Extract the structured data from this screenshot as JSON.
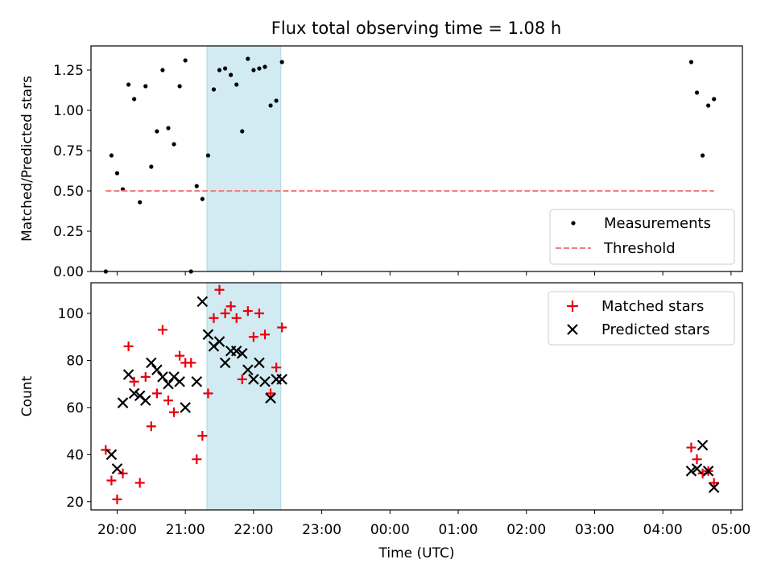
{
  "figure": {
    "title": "Flux total observing time = 1.08 h"
  },
  "colors": {
    "measurement": "#000000",
    "threshold": "#f08080",
    "matched": "#e8000b",
    "predicted": "#000000",
    "highlight": "#add8e6"
  },
  "chart_data": [
    {
      "type": "scatter",
      "ylabel": "Matched/Predicted stars",
      "xlim": [
        "19:37",
        "05:10"
      ],
      "ylim": [
        0,
        1.4
      ],
      "yticks": [
        "0.00",
        "0.25",
        "0.50",
        "0.75",
        "1.00",
        "1.25"
      ],
      "highlight_span": [
        "21:19",
        "22:24"
      ],
      "legend": {
        "placement": "lower-right",
        "entries": [
          "Measurements",
          "Threshold"
        ]
      },
      "series": [
        {
          "name": "Measurements",
          "marker": "dot",
          "x": [
            "19:50",
            "19:55",
            "20:00",
            "20:05",
            "20:10",
            "20:15",
            "20:20",
            "20:25",
            "20:30",
            "20:35",
            "20:40",
            "20:45",
            "20:50",
            "20:55",
            "21:00",
            "21:05",
            "21:10",
            "21:15",
            "21:20",
            "21:25",
            "21:30",
            "21:35",
            "21:40",
            "21:45",
            "21:50",
            "21:55",
            "22:00",
            "22:05",
            "22:10",
            "22:15",
            "22:20",
            "22:25",
            "04:25",
            "04:30",
            "04:35",
            "04:40",
            "04:45"
          ],
          "y": [
            0.0,
            0.72,
            0.61,
            0.51,
            1.16,
            1.07,
            0.43,
            1.15,
            0.65,
            0.87,
            1.25,
            0.89,
            0.79,
            1.15,
            1.31,
            0.0,
            0.53,
            0.45,
            0.72,
            1.13,
            1.25,
            1.26,
            1.22,
            1.16,
            0.87,
            1.32,
            1.25,
            1.26,
            1.27,
            1.03,
            1.06,
            1.3,
            1.3,
            1.11,
            0.72,
            1.03,
            1.07
          ]
        },
        {
          "name": "Threshold",
          "marker": "dashed-line",
          "x": [
            "19:50",
            "04:45"
          ],
          "y": [
            0.5,
            0.5
          ]
        }
      ]
    },
    {
      "type": "scatter",
      "xlabel": "Time (UTC)",
      "ylabel": "Count",
      "xlim": [
        "19:37",
        "05:10"
      ],
      "ylim": [
        16.5,
        113
      ],
      "yticks": [
        "20",
        "40",
        "60",
        "80",
        "100"
      ],
      "xticks": [
        "20:00",
        "21:00",
        "22:00",
        "23:00",
        "00:00",
        "01:00",
        "02:00",
        "03:00",
        "04:00",
        "05:00"
      ],
      "highlight_span": [
        "21:19",
        "22:24"
      ],
      "legend": {
        "placement": "upper-right",
        "entries": [
          "Matched stars",
          "Predicted stars"
        ]
      },
      "series": [
        {
          "name": "Matched stars",
          "marker": "plus",
          "x": [
            "19:50",
            "19:55",
            "20:00",
            "20:05",
            "20:10",
            "20:15",
            "20:20",
            "20:25",
            "20:30",
            "20:35",
            "20:40",
            "20:45",
            "20:50",
            "20:55",
            "21:00",
            "21:05",
            "21:10",
            "21:15",
            "21:20",
            "21:25",
            "21:30",
            "21:35",
            "21:40",
            "21:45",
            "21:50",
            "21:55",
            "22:00",
            "22:05",
            "22:10",
            "22:15",
            "22:20",
            "22:25",
            "04:25",
            "04:30",
            "04:35",
            "04:40",
            "04:45"
          ],
          "y": [
            42,
            29,
            21,
            32,
            86,
            71,
            28,
            73,
            52,
            66,
            93,
            63,
            58,
            82,
            79,
            79,
            38,
            48,
            66,
            98,
            110,
            100,
            103,
            98,
            72,
            101,
            90,
            100,
            91,
            66,
            77,
            94,
            43,
            38,
            32,
            33,
            28
          ]
        },
        {
          "name": "Predicted stars",
          "marker": "x",
          "x": [
            "19:55",
            "20:00",
            "20:05",
            "20:10",
            "20:15",
            "20:20",
            "20:25",
            "20:30",
            "20:35",
            "20:40",
            "20:45",
            "20:50",
            "20:55",
            "21:00",
            "21:10",
            "21:15",
            "21:20",
            "21:25",
            "21:30",
            "21:35",
            "21:40",
            "21:45",
            "21:50",
            "21:55",
            "22:00",
            "22:05",
            "22:10",
            "22:15",
            "22:20",
            "22:25",
            "04:25",
            "04:30",
            "04:35",
            "04:40",
            "04:45"
          ],
          "y": [
            40,
            34,
            62,
            74,
            66,
            65,
            63,
            79,
            76,
            73,
            70,
            73,
            71,
            60,
            71,
            105,
            91,
            86,
            88,
            79,
            84,
            84,
            83,
            76,
            72,
            79,
            71,
            64,
            72,
            72,
            33,
            34,
            44,
            33,
            26
          ]
        }
      ]
    }
  ]
}
